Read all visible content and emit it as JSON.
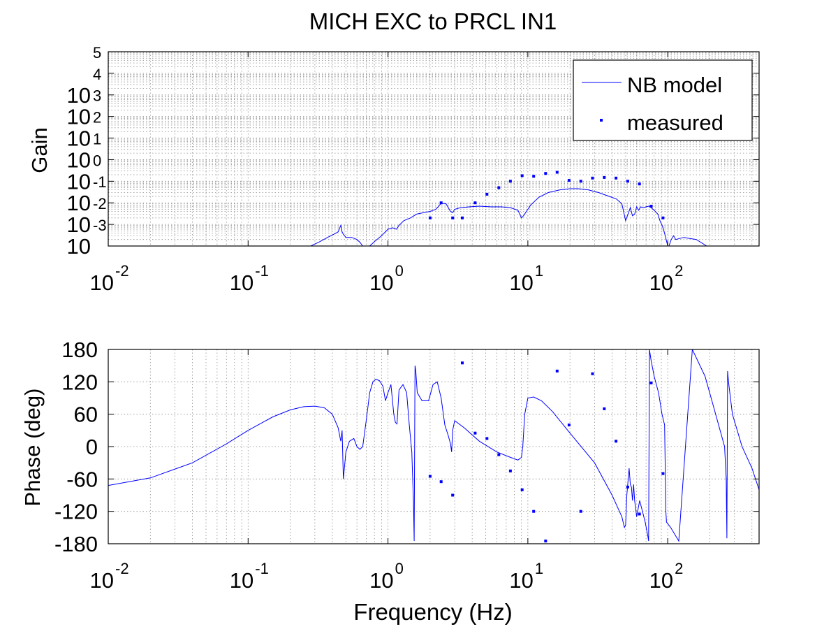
{
  "chart_data": [
    {
      "type": "line",
      "title": "MICH EXC to PRCL IN1",
      "xlabel": "",
      "ylabel": "Gain",
      "xscale": "log",
      "yscale": "log",
      "xlim": [
        0.01,
        450
      ],
      "ylim": [
        0.0001,
        100000
      ],
      "grid": true,
      "legend_position": "top-right",
      "x_ticks": [
        {
          "base": "10",
          "exp": "-2"
        },
        {
          "base": "10",
          "exp": "-1"
        },
        {
          "base": "10",
          "exp": "0"
        },
        {
          "base": "10",
          "exp": "1"
        },
        {
          "base": "10",
          "exp": "2"
        }
      ],
      "y_tick_labels": [
        {
          "base": "10",
          "exp": "-3"
        },
        {
          "base": "10",
          "exp": "-2"
        },
        {
          "base": "10",
          "exp": "-1"
        },
        {
          "base": "10",
          "exp": "0"
        },
        {
          "base": "10",
          "exp": "1"
        },
        {
          "base": "10",
          "exp": "2"
        },
        {
          "base": "10",
          "exp": "3"
        },
        {
          "base": "10",
          "exp": "4"
        },
        {
          "base": "",
          "exp": "5"
        }
      ],
      "series": [
        {
          "name": "NB model",
          "style": "line",
          "color": "#0000ff",
          "x": [
            0.28,
            0.32,
            0.37,
            0.41,
            0.44,
            0.46,
            0.47,
            0.48,
            0.5,
            0.55,
            0.6,
            0.63,
            0.66,
            0.7,
            0.74,
            0.8,
            0.9,
            1.0,
            1.08,
            1.15,
            1.2,
            1.3,
            1.45,
            1.6,
            1.8,
            2.0,
            2.2,
            2.4,
            2.6,
            2.8,
            2.9,
            3.0,
            3.3,
            3.8,
            4.5,
            5.5,
            6.5,
            7.5,
            8.5,
            9.0,
            9.3,
            10.5,
            12,
            14,
            17,
            20,
            23,
            27,
            32,
            38,
            43,
            47,
            50,
            52,
            54,
            56,
            58,
            60,
            62,
            64,
            67,
            70,
            73,
            76,
            80,
            85,
            88,
            92,
            96,
            100,
            102,
            106,
            110,
            114,
            130,
            160,
            190
          ],
          "y": [
            0.0001,
            0.00015,
            0.00025,
            0.00035,
            0.00045,
            0.0009,
            0.00045,
            0.00035,
            0.00025,
            0.00025,
            0.0002,
            0.00015,
            0.0001,
            0.0001,
            0.0001,
            0.00016,
            0.0003,
            0.0006,
            0.0007,
            0.0006,
            0.0009,
            0.0015,
            0.002,
            0.003,
            0.0035,
            0.004,
            0.005,
            0.0095,
            0.009,
            0.004,
            0.0035,
            0.005,
            0.006,
            0.0065,
            0.007,
            0.0065,
            0.0065,
            0.006,
            0.0045,
            0.002,
            0.0025,
            0.008,
            0.018,
            0.03,
            0.04,
            0.045,
            0.045,
            0.04,
            0.03,
            0.02,
            0.015,
            0.009,
            0.0015,
            0.003,
            0.006,
            0.0025,
            0.003,
            0.0065,
            0.0045,
            0.0065,
            0.006,
            0.0065,
            0.007,
            0.006,
            0.0045,
            0.003,
            0.0015,
            0.0008,
            0.0003,
            0.0001,
            0.0001,
            0.0002,
            0.0003,
            0.0002,
            0.00025,
            0.0002,
            0.0001
          ]
        },
        {
          "name": "measured",
          "style": "markers",
          "color": "#0000ff",
          "x": [
            2.0,
            2.4,
            2.9,
            3.4,
            4.2,
            5.1,
            6.2,
            7.5,
            9.1,
            11.0,
            13.4,
            16.2,
            19.7,
            23.9,
            29.0,
            35.2,
            42.7,
            51.8,
            62.8,
            76.2,
            92.5
          ],
          "y": [
            0.002,
            0.01,
            0.002,
            0.002,
            0.01,
            0.025,
            0.05,
            0.1,
            0.18,
            0.17,
            0.23,
            0.26,
            0.11,
            0.1,
            0.14,
            0.15,
            0.14,
            0.1,
            0.075,
            0.007,
            0.002
          ]
        }
      ]
    },
    {
      "type": "line",
      "title": "",
      "xlabel": "Frequency (Hz)",
      "ylabel": "Phase (deg)",
      "xscale": "log",
      "xlim": [
        0.01,
        450
      ],
      "ylim": [
        -180,
        180
      ],
      "grid": true,
      "x_ticks": [
        {
          "base": "10",
          "exp": "-2"
        },
        {
          "base": "10",
          "exp": "-1"
        },
        {
          "base": "10",
          "exp": "0"
        },
        {
          "base": "10",
          "exp": "1"
        },
        {
          "base": "10",
          "exp": "2"
        }
      ],
      "y_ticks": [
        -180,
        -120,
        -60,
        0,
        60,
        120,
        180
      ],
      "y_tick_labels": [
        "-180",
        "-120",
        "-60",
        "0",
        "60",
        "120",
        "180"
      ],
      "series": [
        {
          "name": "NB model",
          "style": "line",
          "color": "#0000ff",
          "x": [
            0.01,
            0.02,
            0.04,
            0.07,
            0.1,
            0.15,
            0.2,
            0.25,
            0.3,
            0.35,
            0.4,
            0.44,
            0.46,
            0.47,
            0.48,
            0.5,
            0.53,
            0.57,
            0.6,
            0.63,
            0.66,
            0.7,
            0.74,
            0.78,
            0.82,
            0.87,
            0.92,
            0.96,
            1.0,
            1.05,
            1.1,
            1.13,
            1.16,
            1.2,
            1.28,
            1.36,
            1.42,
            1.48,
            1.52,
            1.54,
            1.56,
            1.58,
            1.62,
            1.75,
            1.95,
            2.1,
            2.25,
            2.4,
            2.55,
            2.7,
            2.8,
            2.85,
            2.9,
            3.0,
            3.5,
            4.5,
            6.0,
            7.5,
            8.5,
            9.0,
            9.2,
            9.5,
            10.0,
            11.0,
            12.5,
            15.0,
            20.0,
            30.0,
            40.0,
            47.0,
            49.0,
            50.0,
            51.0,
            53.0,
            54.0,
            55.0,
            56.0,
            57.0,
            58.0,
            60.0,
            63.0,
            66.0,
            69.0,
            72.0,
            73.0,
            74.0,
            76.0,
            80.0,
            86.0,
            91.0,
            95.0,
            97.0,
            98.0,
            105.0,
            120.0,
            150.0,
            185.0,
            220.0,
            255.0,
            262.0,
            265.0,
            268.0,
            272.0,
            290.0,
            340.0,
            400.0,
            450.0
          ],
          "y": [
            -72,
            -58,
            -30,
            5,
            30,
            55,
            68,
            74,
            75,
            72,
            60,
            35,
            10,
            30,
            -60,
            -10,
            10,
            15,
            0,
            -5,
            0,
            50,
            100,
            120,
            125,
            122,
            112,
            85,
            100,
            115,
            60,
            45,
            42,
            105,
            115,
            100,
            40,
            -10,
            -100,
            -175,
            150,
            140,
            100,
            85,
            85,
            115,
            120,
            90,
            40,
            20,
            5,
            -10,
            30,
            48,
            35,
            10,
            -10,
            -20,
            -25,
            -20,
            0,
            60,
            90,
            92,
            85,
            65,
            25,
            -30,
            -90,
            -130,
            -150,
            -145,
            -90,
            -40,
            -70,
            -75,
            -100,
            -70,
            -100,
            -130,
            -100,
            -120,
            -140,
            -165,
            -175,
            180,
            160,
            130,
            100,
            60,
            40,
            -120,
            -140,
            -150,
            -175,
            180,
            130,
            60,
            0,
            -60,
            -170,
            140,
            120,
            60,
            0,
            -40,
            -80
          ]
        },
        {
          "name": "measured",
          "style": "markers",
          "color": "#0000ff",
          "x": [
            2.0,
            2.4,
            2.9,
            3.4,
            4.2,
            5.1,
            6.2,
            7.5,
            9.1,
            11.0,
            13.4,
            16.2,
            19.7,
            23.9,
            29.0,
            35.2,
            42.7,
            51.8,
            62.8,
            76.2,
            92.5
          ],
          "y": [
            -55,
            -65,
            -90,
            155,
            25,
            15,
            -15,
            -45,
            -80,
            -120,
            -175,
            140,
            40,
            -120,
            135,
            70,
            10,
            -75,
            -125,
            118,
            -50
          ]
        }
      ]
    }
  ]
}
